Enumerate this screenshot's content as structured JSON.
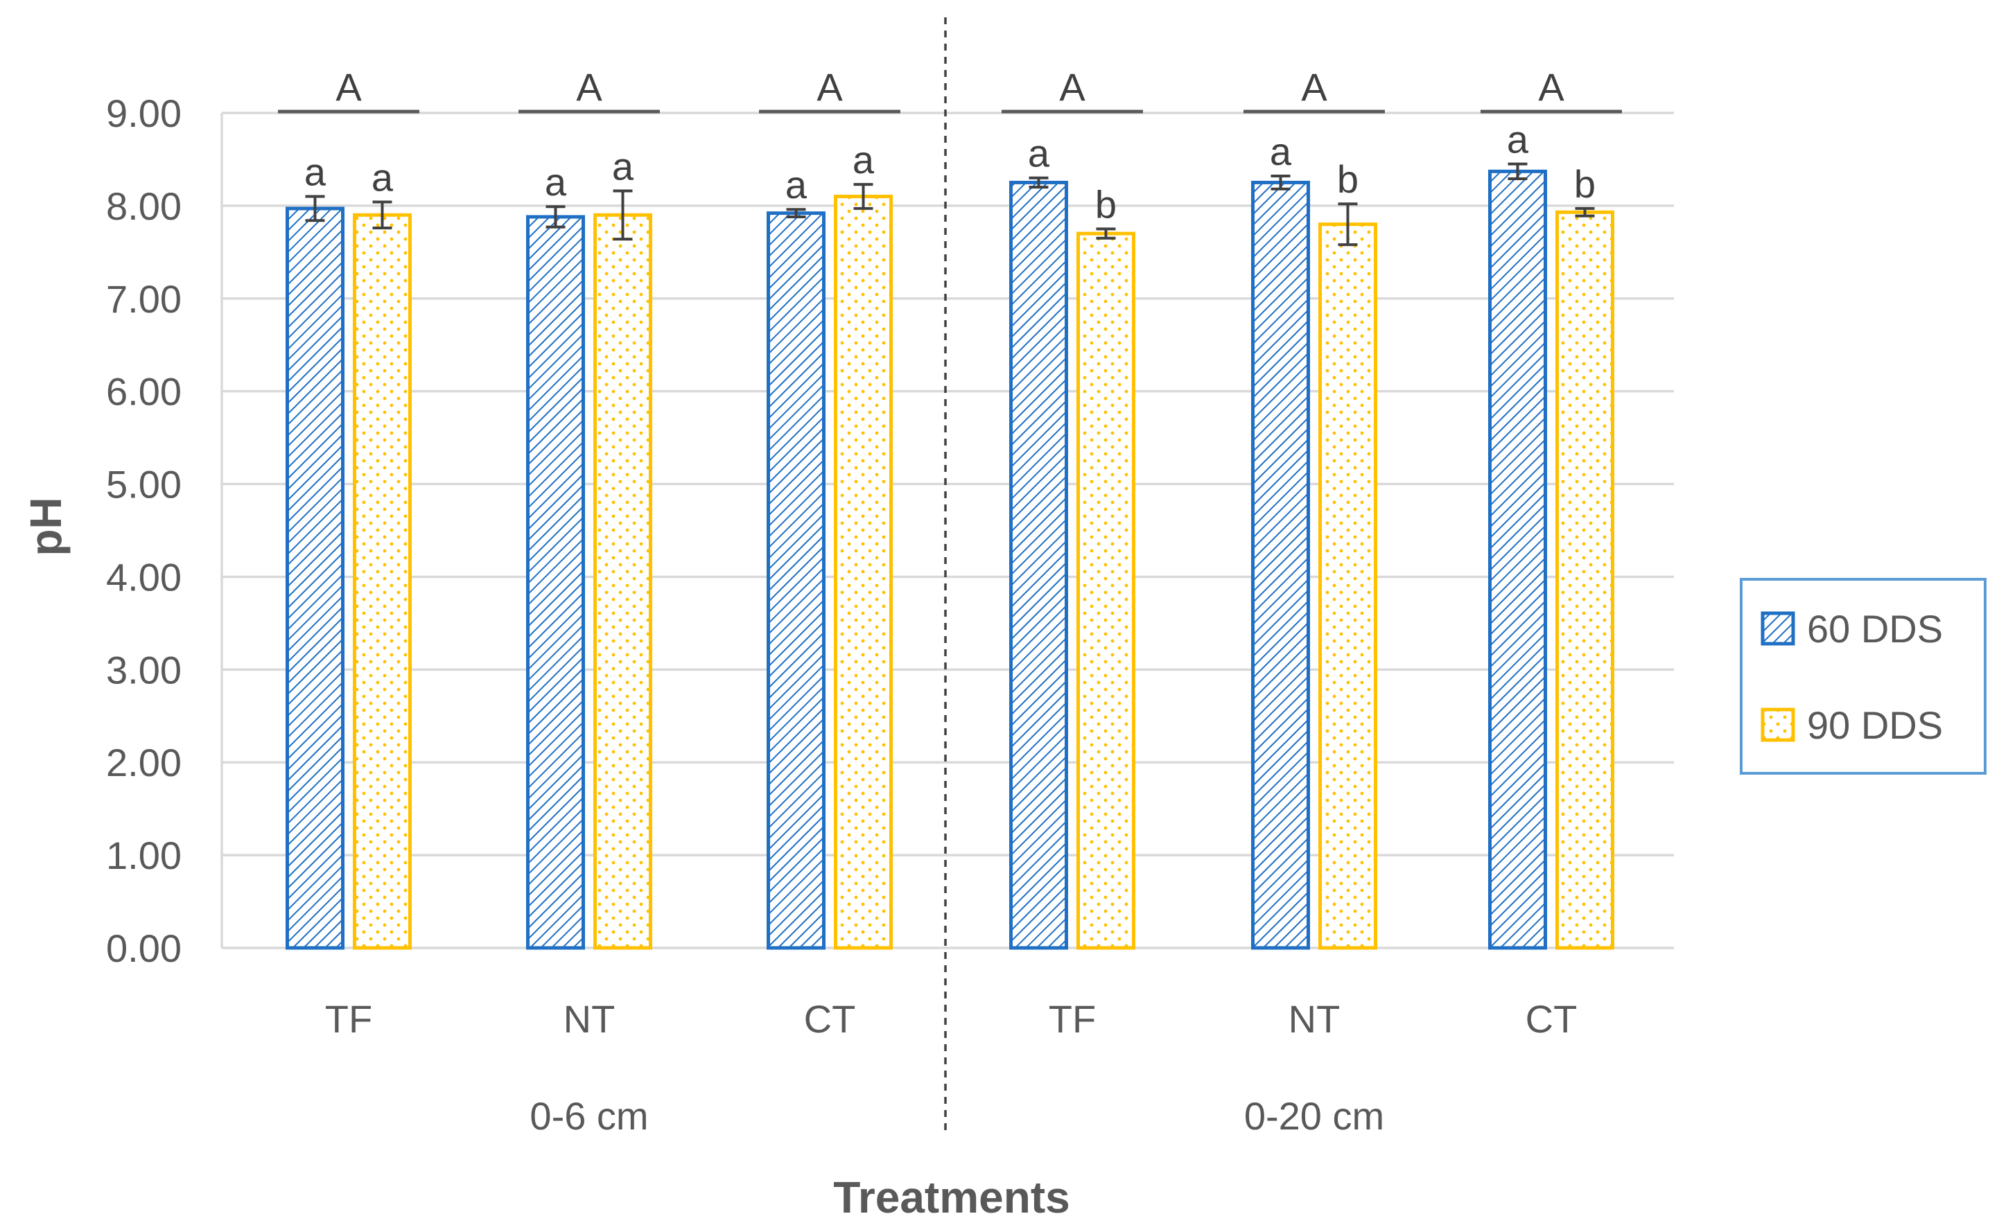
{
  "chart_data": {
    "type": "bar",
    "ylabel": "pH",
    "xlabel": "Treatments",
    "ylim": [
      0,
      9
    ],
    "yticks": [
      "0.00",
      "1.00",
      "2.00",
      "3.00",
      "4.00",
      "5.00",
      "6.00",
      "7.00",
      "8.00",
      "9.00"
    ],
    "grid": true,
    "legend_position": "right",
    "groups": [
      {
        "label": "0-6 cm",
        "categories": [
          "TF",
          "NT",
          "CT"
        ]
      },
      {
        "label": "0-20 cm",
        "categories": [
          "TF",
          "NT",
          "CT"
        ]
      }
    ],
    "categories": [
      "TF",
      "NT",
      "CT",
      "TF",
      "NT",
      "CT"
    ],
    "series": [
      {
        "name": "60 DDS",
        "color": "#1f6fc4",
        "pattern": "diagonal-hatch",
        "values": [
          7.97,
          7.88,
          7.92,
          8.25,
          8.25,
          8.37
        ],
        "errors": [
          0.13,
          0.11,
          0.04,
          0.05,
          0.07,
          0.08
        ],
        "letters": [
          "a",
          "a",
          "a",
          "a",
          "a",
          "a"
        ]
      },
      {
        "name": "90 DDS",
        "color": "#ffc000",
        "pattern": "dotted",
        "values": [
          7.9,
          7.9,
          8.1,
          7.7,
          7.8,
          7.93
        ],
        "errors": [
          0.14,
          0.26,
          0.13,
          0.05,
          0.22,
          0.04
        ],
        "letters": [
          "a",
          "a",
          "a",
          "b",
          "b",
          "b"
        ]
      }
    ],
    "pair_letters": [
      "A",
      "A",
      "A",
      "A",
      "A",
      "A"
    ]
  }
}
